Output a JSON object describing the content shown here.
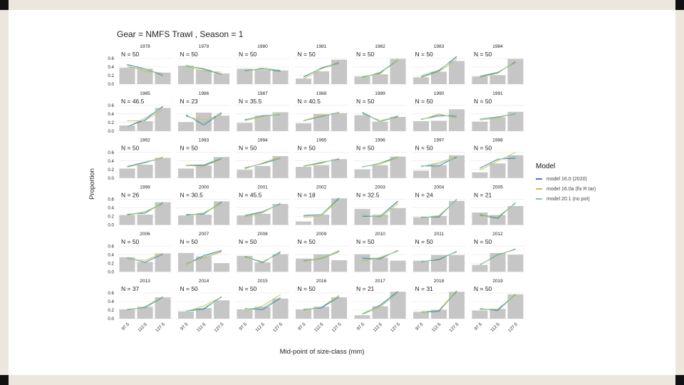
{
  "chart_data": {
    "type": "bar",
    "title": "Gear = NMFS Trawl , Season = 1",
    "xlabel": "Mid-point of size-class (mm)",
    "ylabel": "Proportion",
    "categories": [
      "97.5",
      "112.5",
      "127.5"
    ],
    "y_ticks": [
      "0.0",
      "0.2",
      "0.4",
      "0.6"
    ],
    "ylim": [
      0,
      0.7
    ],
    "legend_title": "Model",
    "series": [
      {
        "name": "model 16.0 (2020)",
        "color": "#4a78b8"
      },
      {
        "name": "model 16.0a (fix R tar)",
        "color": "#c8c050"
      },
      {
        "name": "model 20.1 (no pot)",
        "color": "#7ec8a8"
      }
    ],
    "panels": [
      {
        "year": "1978",
        "n": "N = 50",
        "bars": [
          0.38,
          0.36,
          0.27
        ],
        "fits": [
          [
            0.46,
            0.36,
            0.2
          ],
          [
            0.44,
            0.3,
            0.26
          ],
          [
            0.4,
            0.36,
            0.22
          ]
        ]
      },
      {
        "year": "1979",
        "n": "N = 50",
        "bars": [
          0.43,
          0.33,
          0.25
        ],
        "fits": [
          [
            0.43,
            0.36,
            0.23
          ],
          [
            0.42,
            0.3,
            0.28
          ],
          [
            0.44,
            0.34,
            0.22
          ]
        ]
      },
      {
        "year": "1980",
        "n": "N = 50",
        "bars": [
          0.36,
          0.33,
          0.32
        ],
        "fits": [
          [
            0.32,
            0.36,
            0.3
          ],
          [
            0.3,
            0.38,
            0.32
          ],
          [
            0.31,
            0.35,
            0.33
          ]
        ]
      },
      {
        "year": "1981",
        "n": "N = 50",
        "bars": [
          0.13,
          0.3,
          0.57
        ],
        "fits": [
          [
            0.16,
            0.38,
            0.5
          ],
          [
            0.12,
            0.35,
            0.53
          ],
          [
            0.18,
            0.37,
            0.47
          ]
        ]
      },
      {
        "year": "1982",
        "n": "N = 50",
        "bars": [
          0.18,
          0.23,
          0.59
        ],
        "fits": [
          [
            0.16,
            0.26,
            0.56
          ],
          [
            0.18,
            0.24,
            0.6
          ],
          [
            0.15,
            0.28,
            0.56
          ]
        ]
      },
      {
        "year": "1983",
        "n": "N = 50",
        "bars": [
          0.16,
          0.29,
          0.54
        ],
        "fits": [
          [
            0.17,
            0.31,
            0.65
          ],
          [
            0.15,
            0.29,
            0.58
          ],
          [
            0.2,
            0.33,
            0.62
          ]
        ]
      },
      {
        "year": "1984",
        "n": "N = 50",
        "bars": [
          0.18,
          0.21,
          0.59
        ],
        "fits": [
          [
            0.17,
            0.27,
            0.52
          ],
          [
            0.16,
            0.25,
            0.54
          ],
          [
            0.19,
            0.28,
            0.5
          ]
        ]
      },
      {
        "year": "1985",
        "n": "N = 46.5",
        "bars": [
          0.13,
          0.23,
          0.54
        ],
        "fits": [
          [
            0.1,
            0.26,
            0.58
          ],
          [
            0.24,
            0.24,
            0.5
          ],
          [
            0.1,
            0.3,
            0.56
          ]
        ]
      },
      {
        "year": "1986",
        "n": "N = 23",
        "bars": [
          0.21,
          0.43,
          0.36
        ],
        "fits": [
          [
            0.38,
            0.14,
            0.42
          ],
          [
            0.34,
            0.26,
            0.38
          ],
          [
            0.36,
            0.18,
            0.44
          ]
        ]
      },
      {
        "year": "1987",
        "n": "N = 35.5",
        "bars": [
          0.19,
          0.36,
          0.44
        ],
        "fits": [
          [
            0.26,
            0.36,
            0.38
          ],
          [
            0.24,
            0.34,
            0.4
          ],
          [
            0.27,
            0.35,
            0.38
          ]
        ]
      },
      {
        "year": "1988",
        "n": "N = 40.5",
        "bars": [
          0.18,
          0.4,
          0.42
        ],
        "fits": [
          [
            0.24,
            0.34,
            0.44
          ],
          [
            0.25,
            0.36,
            0.42
          ],
          [
            0.24,
            0.33,
            0.44
          ]
        ]
      },
      {
        "year": "1989",
        "n": "N = 50",
        "bars": [
          0.37,
          0.22,
          0.33
        ],
        "fits": [
          [
            0.44,
            0.22,
            0.34
          ],
          [
            0.4,
            0.25,
            0.32
          ],
          [
            0.42,
            0.22,
            0.36
          ]
        ]
      },
      {
        "year": "1990",
        "n": "N = 50",
        "bars": [
          0.23,
          0.24,
          0.51
        ],
        "fits": [
          [
            0.27,
            0.37,
            0.34
          ],
          [
            0.26,
            0.4,
            0.3
          ],
          [
            0.28,
            0.34,
            0.38
          ]
        ]
      },
      {
        "year": "1991",
        "n": "N = 50",
        "bars": [
          0.22,
          0.32,
          0.45
        ],
        "fits": [
          [
            0.28,
            0.33,
            0.4
          ],
          [
            0.26,
            0.3,
            0.42
          ],
          [
            0.28,
            0.32,
            0.41
          ]
        ]
      },
      {
        "year": "1992",
        "n": "N = 50",
        "bars": [
          0.22,
          0.31,
          0.47
        ],
        "fits": [
          [
            0.27,
            0.37,
            0.47
          ],
          [
            0.25,
            0.35,
            0.49
          ],
          [
            0.26,
            0.36,
            0.47
          ]
        ]
      },
      {
        "year": "1993",
        "n": "N = 50",
        "bars": [
          0.22,
          0.29,
          0.49
        ],
        "fits": [
          [
            0.3,
            0.29,
            0.45
          ],
          [
            0.29,
            0.27,
            0.44
          ],
          [
            0.3,
            0.31,
            0.47
          ]
        ]
      },
      {
        "year": "1994",
        "n": "N = 50",
        "bars": [
          0.19,
          0.28,
          0.51
        ],
        "fits": [
          [
            0.23,
            0.34,
            0.46
          ],
          [
            0.21,
            0.35,
            0.5
          ],
          [
            0.24,
            0.33,
            0.45
          ]
        ]
      },
      {
        "year": "1995",
        "n": "N = 50",
        "bars": [
          0.26,
          0.3,
          0.44
        ],
        "fits": [
          [
            0.28,
            0.36,
            0.44
          ],
          [
            0.27,
            0.34,
            0.46
          ],
          [
            0.28,
            0.37,
            0.43
          ]
        ]
      },
      {
        "year": "1996",
        "n": "N = 50",
        "bars": [
          0.2,
          0.3,
          0.5
        ],
        "fits": [
          [
            0.26,
            0.33,
            0.5
          ],
          [
            0.26,
            0.33,
            0.47
          ],
          [
            0.25,
            0.35,
            0.5
          ]
        ]
      },
      {
        "year": "1997",
        "n": "N = 50",
        "bars": [
          0.17,
          0.3,
          0.53
        ],
        "fits": [
          [
            0.28,
            0.28,
            0.49
          ],
          [
            0.26,
            0.36,
            0.5
          ],
          [
            0.27,
            0.33,
            0.47
          ]
        ]
      },
      {
        "year": "1998",
        "n": "N = 50",
        "bars": [
          0.13,
          0.34,
          0.53
        ],
        "fits": [
          [
            0.23,
            0.44,
            0.46
          ],
          [
            0.18,
            0.4,
            0.6
          ],
          [
            0.22,
            0.43,
            0.5
          ]
        ]
      },
      {
        "year": "1999",
        "n": "N = 26",
        "bars": [
          0.23,
          0.24,
          0.53
        ],
        "fits": [
          [
            0.25,
            0.27,
            0.52
          ],
          [
            0.22,
            0.3,
            0.48
          ],
          [
            0.23,
            0.31,
            0.5
          ]
        ]
      },
      {
        "year": "2000",
        "n": "N = 30.5",
        "bars": [
          0.22,
          0.24,
          0.55
        ],
        "fits": [
          [
            0.24,
            0.25,
            0.54
          ],
          [
            0.21,
            0.27,
            0.5
          ],
          [
            0.22,
            0.28,
            0.52
          ]
        ]
      },
      {
        "year": "2001",
        "n": "N = 45.5",
        "bars": [
          0.22,
          0.26,
          0.49
        ],
        "fits": [
          [
            0.22,
            0.31,
            0.49
          ],
          [
            0.18,
            0.28,
            0.51
          ],
          [
            0.2,
            0.3,
            0.5
          ]
        ]
      },
      {
        "year": "2002",
        "n": "N = 18",
        "bars": [
          0.08,
          0.24,
          0.62
        ],
        "fits": [
          [
            0.22,
            0.24,
            0.63
          ],
          [
            0.17,
            0.21,
            0.59
          ],
          [
            0.2,
            0.24,
            0.61
          ]
        ]
      },
      {
        "year": "2003",
        "n": "N = 32.5",
        "bars": [
          0.37,
          0.24,
          0.39
        ],
        "fits": [
          [
            0.2,
            0.2,
            0.56
          ],
          [
            0.25,
            0.16,
            0.5
          ],
          [
            0.22,
            0.19,
            0.54
          ]
        ]
      },
      {
        "year": "2004",
        "n": "N = 24",
        "bars": [
          0.18,
          0.21,
          0.56
        ],
        "fits": [
          [
            0.18,
            0.18,
            0.6
          ],
          [
            0.15,
            0.22,
            0.58
          ],
          [
            0.17,
            0.2,
            0.59
          ]
        ]
      },
      {
        "year": "2005",
        "n": "N = 21",
        "bars": [
          0.29,
          0.23,
          0.44
        ],
        "fits": [
          [
            0.23,
            0.15,
            0.52
          ],
          [
            0.21,
            0.19,
            0.5
          ],
          [
            0.25,
            0.17,
            0.51
          ]
        ]
      },
      {
        "year": "2006",
        "n": "N = 50",
        "bars": [
          0.34,
          0.23,
          0.43
        ],
        "fits": [
          [
            0.33,
            0.22,
            0.41
          ],
          [
            0.29,
            0.27,
            0.43
          ],
          [
            0.32,
            0.23,
            0.42
          ]
        ]
      },
      {
        "year": "2007",
        "n": "N = 50",
        "bars": [
          0.44,
          0.36,
          0.2
        ],
        "fits": [
          [
            0.17,
            0.38,
            0.5
          ],
          [
            0.2,
            0.32,
            0.46
          ],
          [
            0.17,
            0.35,
            0.48
          ]
        ]
      },
      {
        "year": "2008",
        "n": "N = 50",
        "bars": [
          0.37,
          0.22,
          0.41
        ],
        "fits": [
          [
            0.36,
            0.21,
            0.47
          ],
          [
            0.34,
            0.24,
            0.43
          ],
          [
            0.37,
            0.22,
            0.45
          ]
        ]
      },
      {
        "year": "2009",
        "n": "N = 50",
        "bars": [
          0.31,
          0.41,
          0.27
        ],
        "fits": [
          [
            0.26,
            0.31,
            0.49
          ],
          [
            0.24,
            0.3,
            0.46
          ],
          [
            0.25,
            0.32,
            0.48
          ]
        ]
      },
      {
        "year": "2010",
        "n": "N = 50",
        "bars": [
          0.41,
          0.33,
          0.26
        ],
        "fits": [
          [
            0.32,
            0.3,
            0.5
          ],
          [
            0.24,
            0.34,
            0.48
          ],
          [
            0.28,
            0.32,
            0.49
          ]
        ]
      },
      {
        "year": "2011",
        "n": "N = 50",
        "bars": [
          0.26,
          0.39,
          0.39
        ],
        "fits": [
          [
            0.24,
            0.28,
            0.48
          ],
          [
            0.22,
            0.31,
            0.46
          ],
          [
            0.23,
            0.3,
            0.47
          ]
        ]
      },
      {
        "year": "2012",
        "n": "N = 50",
        "bars": [
          0.16,
          0.44,
          0.4
        ],
        "fits": [
          [
            0.16,
            0.4,
            0.52
          ],
          [
            0.17,
            0.38,
            0.54
          ],
          [
            0.16,
            0.39,
            0.53
          ]
        ]
      },
      {
        "year": "2013",
        "n": "N = 37",
        "bars": [
          0.22,
          0.28,
          0.5
        ],
        "fits": [
          [
            0.22,
            0.26,
            0.5
          ],
          [
            0.2,
            0.28,
            0.52
          ],
          [
            0.21,
            0.27,
            0.51
          ]
        ]
      },
      {
        "year": "2014",
        "n": "N = 50",
        "bars": [
          0.17,
          0.25,
          0.43
        ],
        "fits": [
          [
            0.18,
            0.22,
            0.52
          ],
          [
            0.17,
            0.3,
            0.51
          ],
          [
            0.18,
            0.25,
            0.5
          ]
        ]
      },
      {
        "year": "2015",
        "n": "N = 50",
        "bars": [
          0.22,
          0.28,
          0.47
        ],
        "fits": [
          [
            0.24,
            0.21,
            0.48
          ],
          [
            0.18,
            0.3,
            0.56
          ],
          [
            0.23,
            0.25,
            0.5
          ]
        ]
      },
      {
        "year": "2016",
        "n": "N = 50",
        "bars": [
          0.22,
          0.28,
          0.5
        ],
        "fits": [
          [
            0.22,
            0.25,
            0.51
          ],
          [
            0.19,
            0.27,
            0.55
          ],
          [
            0.21,
            0.27,
            0.52
          ]
        ]
      },
      {
        "year": "2017",
        "n": "N = 21",
        "bars": [
          0.08,
          0.29,
          0.63
        ],
        "fits": [
          [
            0.1,
            0.32,
            0.64
          ],
          [
            0.1,
            0.27,
            0.62
          ],
          [
            0.12,
            0.3,
            0.6
          ]
        ]
      },
      {
        "year": "2018",
        "n": "N = 31",
        "bars": [
          0.16,
          0.21,
          0.63
        ],
        "fits": [
          [
            0.15,
            0.17,
            0.64
          ],
          [
            0.14,
            0.2,
            0.66
          ],
          [
            0.16,
            0.19,
            0.62
          ]
        ]
      },
      {
        "year": "2019",
        "n": "N = 50",
        "bars": [
          0.19,
          0.23,
          0.57
        ],
        "fits": [
          [
            0.24,
            0.19,
            0.57
          ],
          [
            0.21,
            0.23,
            0.55
          ],
          [
            0.23,
            0.21,
            0.58
          ]
        ]
      }
    ]
  }
}
